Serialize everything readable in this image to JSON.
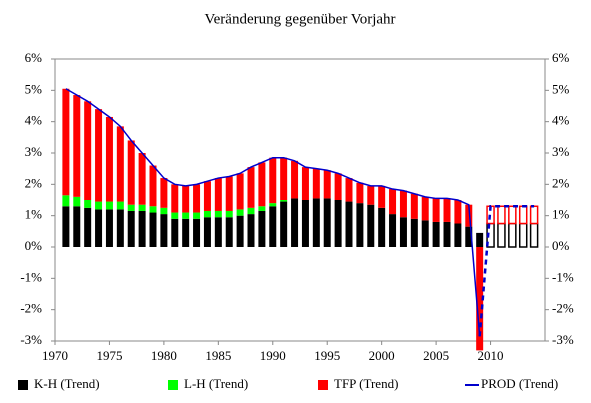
{
  "chart_data": {
    "type": "bar",
    "stacked": true,
    "title": "Veränderung gegenüber Vorjahr",
    "x": [
      1971,
      1972,
      1973,
      1974,
      1975,
      1976,
      1977,
      1978,
      1979,
      1980,
      1981,
      1982,
      1983,
      1984,
      1985,
      1986,
      1987,
      1988,
      1989,
      1990,
      1991,
      1992,
      1993,
      1994,
      1995,
      1996,
      1997,
      1998,
      1999,
      2000,
      2001,
      2002,
      2003,
      2004,
      2005,
      2006,
      2007,
      2008,
      2009,
      2010,
      2011,
      2012,
      2013,
      2014
    ],
    "xlim": [
      1970,
      2015
    ],
    "xticks": [
      1970,
      1975,
      1980,
      1985,
      1990,
      1995,
      2000,
      2005,
      2010
    ],
    "ylim": [
      -3,
      6
    ],
    "yticks": [
      {
        "value": -3,
        "label": "-3%"
      },
      {
        "value": -2,
        "label": "-2%"
      },
      {
        "value": -1,
        "label": "-1%"
      },
      {
        "value": 0,
        "label": "0%"
      },
      {
        "value": 1,
        "label": "1%"
      },
      {
        "value": 2,
        "label": "2%"
      },
      {
        "value": 3,
        "label": "3%"
      },
      {
        "value": 4,
        "label": "4%"
      },
      {
        "value": 5,
        "label": "5%"
      },
      {
        "value": 6,
        "label": "6%"
      }
    ],
    "y2lim": [
      -3,
      6
    ],
    "y2ticks": [
      {
        "value": -3,
        "label": "-3%"
      },
      {
        "value": -2,
        "label": "-2%"
      },
      {
        "value": -1,
        "label": "-1%"
      },
      {
        "value": 0,
        "label": "0%"
      },
      {
        "value": 1,
        "label": "1%"
      },
      {
        "value": 2,
        "label": "2%"
      },
      {
        "value": 3,
        "label": "3%"
      },
      {
        "value": 4,
        "label": "4%"
      },
      {
        "value": 5,
        "label": "5%"
      },
      {
        "value": 6,
        "label": "6%"
      }
    ],
    "forecast_from": 2010,
    "series": [
      {
        "name": "K-H (Trend)",
        "type": "bar",
        "color": "#000000",
        "values": [
          1.3,
          1.3,
          1.25,
          1.2,
          1.2,
          1.2,
          1.15,
          1.15,
          1.1,
          1.05,
          0.9,
          0.9,
          0.9,
          0.95,
          0.95,
          0.95,
          1.0,
          1.05,
          1.15,
          1.3,
          1.45,
          1.55,
          1.5,
          1.55,
          1.55,
          1.5,
          1.45,
          1.4,
          1.35,
          1.25,
          1.05,
          0.95,
          0.9,
          0.85,
          0.8,
          0.8,
          0.75,
          0.65,
          0.45,
          0.75,
          0.75,
          0.75,
          0.75,
          0.75
        ]
      },
      {
        "name": "L-H (Trend)",
        "type": "bar",
        "color": "#00ff00",
        "values": [
          0.35,
          0.3,
          0.25,
          0.25,
          0.25,
          0.25,
          0.2,
          0.2,
          0.2,
          0.2,
          0.2,
          0.2,
          0.2,
          0.2,
          0.2,
          0.2,
          0.2,
          0.2,
          0.15,
          0.1,
          0.05,
          0,
          0,
          0,
          0,
          0,
          0,
          0,
          0,
          0,
          0,
          0,
          0,
          0,
          0,
          0,
          0,
          0,
          0,
          0,
          0,
          0,
          0,
          0
        ]
      },
      {
        "name": "TFP (Trend)",
        "type": "bar",
        "color": "#ff0000",
        "values": [
          3.4,
          3.25,
          3.15,
          2.95,
          2.7,
          2.4,
          2.05,
          1.65,
          1.3,
          0.95,
          0.9,
          0.85,
          0.9,
          0.95,
          1.05,
          1.1,
          1.15,
          1.3,
          1.4,
          1.45,
          1.35,
          1.2,
          1.05,
          0.95,
          0.9,
          0.85,
          0.75,
          0.65,
          0.6,
          0.7,
          0.8,
          0.85,
          0.8,
          0.75,
          0.75,
          0.75,
          0.75,
          0.7,
          -3.3,
          0.55,
          0.55,
          0.55,
          0.55,
          0.55
        ]
      },
      {
        "name": "PROD (Trend)",
        "type": "line",
        "color": "#0000cc",
        "values": [
          5.05,
          4.85,
          4.65,
          4.4,
          4.15,
          3.85,
          3.4,
          3.0,
          2.6,
          2.2,
          2.0,
          1.95,
          2.0,
          2.1,
          2.2,
          2.25,
          2.35,
          2.55,
          2.7,
          2.85,
          2.85,
          2.75,
          2.55,
          2.5,
          2.45,
          2.35,
          2.2,
          2.05,
          1.95,
          1.95,
          1.85,
          1.8,
          1.7,
          1.6,
          1.55,
          1.55,
          1.5,
          1.35,
          -2.85,
          1.3,
          1.3,
          1.3,
          1.3,
          1.3
        ]
      }
    ]
  }
}
